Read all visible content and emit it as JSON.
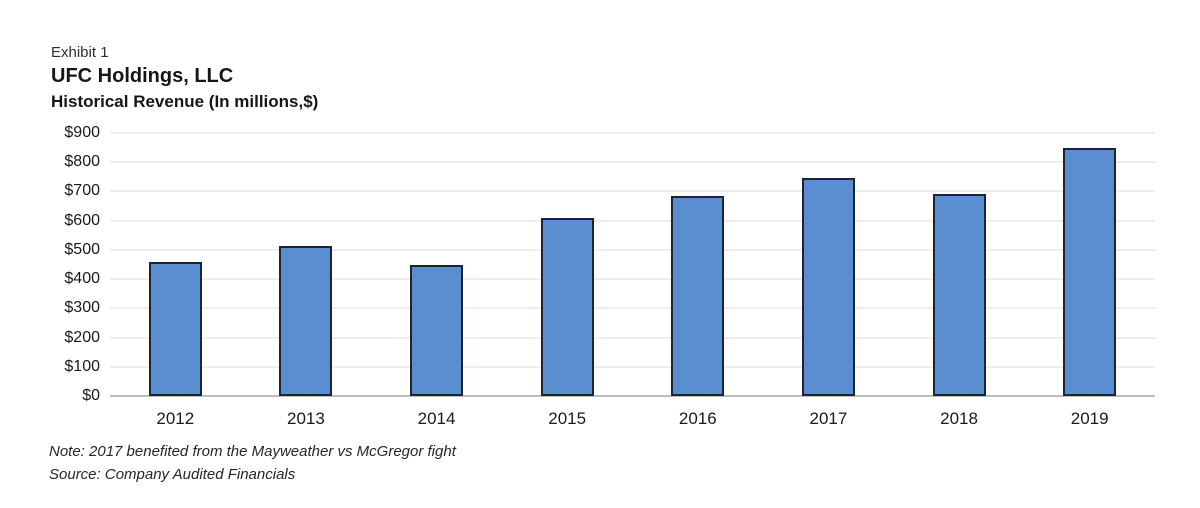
{
  "header": {
    "exhibit_label": "Exhibit 1",
    "company": "UFC Holdings, LLC",
    "subtitle": "Historical Revenue (In millions,$)"
  },
  "chart_data": {
    "type": "bar",
    "title": "UFC Holdings, LLC",
    "subtitle": "Historical Revenue (In millions,$)",
    "categories": [
      "2012",
      "2013",
      "2014",
      "2015",
      "2016",
      "2017",
      "2018",
      "2019"
    ],
    "values": [
      460,
      515,
      450,
      610,
      685,
      745,
      690,
      850
    ],
    "series_name": "Historical Revenue ($ millions)",
    "xlabel": "",
    "ylabel": "",
    "ylim": [
      0,
      900
    ],
    "y_tick_step": 100,
    "y_ticks": [
      {
        "value": 0,
        "label": "$0"
      },
      {
        "value": 100,
        "label": "$100"
      },
      {
        "value": 200,
        "label": "$200"
      },
      {
        "value": 300,
        "label": "$300"
      },
      {
        "value": 400,
        "label": "$400"
      },
      {
        "value": 500,
        "label": "$500"
      },
      {
        "value": 600,
        "label": "$600"
      },
      {
        "value": 700,
        "label": "$700"
      },
      {
        "value": 800,
        "label": "$800"
      },
      {
        "value": 900,
        "label": "$900"
      }
    ],
    "grid": "horizontal",
    "legend": "none",
    "colors": {
      "bar_fill": "#5B8ED1",
      "bar_border": "#1A2433",
      "gridline": "#F0EDED",
      "baseline": "#BDBDBD",
      "label_text": "#1A1A1A"
    }
  },
  "footnotes": {
    "note": "Note: 2017 benefited from the Mayweather vs McGregor fight",
    "source": "Source: Company Audited Financials"
  }
}
